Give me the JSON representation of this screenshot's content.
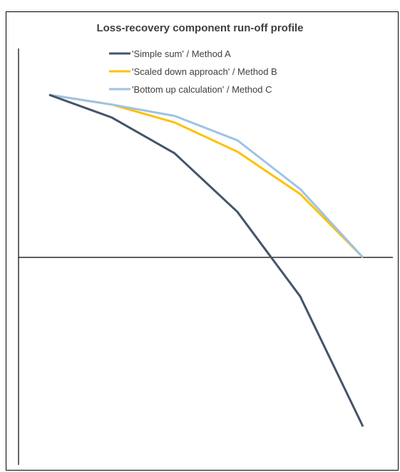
{
  "chart_data": {
    "type": "line",
    "title": "Loss-recovery component run-off profile",
    "xlabel": "",
    "ylabel": "",
    "x": [
      1,
      2,
      3,
      4,
      5,
      6
    ],
    "ylim": [
      -1.6,
      1.6
    ],
    "grid": false,
    "legend_position": "top",
    "series": [
      {
        "name": "'Simple sum' / Method A",
        "color": "#44546A",
        "values": [
          1.0,
          0.86,
          0.64,
          0.28,
          -0.24,
          -1.04
        ]
      },
      {
        "name": "'Scaled down approach' / Method B",
        "color": "#FFC000",
        "values": [
          1.0,
          0.94,
          0.83,
          0.65,
          0.39,
          0.0
        ]
      },
      {
        "name": "'Bottom up calculation' / Method C",
        "color": "#9DC3E6",
        "values": [
          1.0,
          0.94,
          0.87,
          0.72,
          0.42,
          0.0
        ]
      }
    ]
  }
}
